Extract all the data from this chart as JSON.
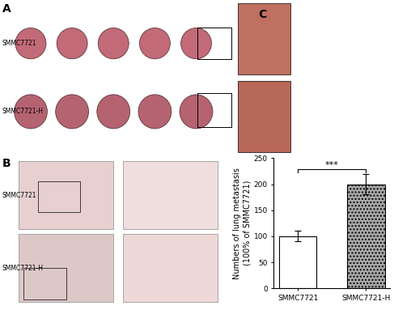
{
  "categories": [
    "SMMC7721",
    "SMMC7721-H"
  ],
  "values": [
    100,
    200
  ],
  "errors": [
    10,
    20
  ],
  "bar_colors": [
    "white",
    "#a8a8a8"
  ],
  "bar_edgecolors": [
    "black",
    "black"
  ],
  "ylabel_top": "Numbers of lung metastasis",
  "ylabel_bottom": "(100% of SMMC7721)",
  "ylim": [
    0,
    250
  ],
  "yticks": [
    0,
    50,
    100,
    150,
    200,
    250
  ],
  "significance": "***",
  "background_color": "#ffffff",
  "bar_width": 0.55,
  "hatch_pattern": [
    "",
    "...."
  ],
  "panel_A_label": "A",
  "panel_B_label": "B",
  "panel_C_label": "C",
  "panel_A_bg": "#c8c8d8",
  "panel_A_img_bg": "#b0b8c8",
  "panel_B_bg": "#f0eaea",
  "panel_B_img_bg": "#e8d8d8",
  "thumb_bg": "#c0906060",
  "label_fontsize": 7,
  "tick_fontsize": 6.5,
  "panel_label_fontsize": 10
}
